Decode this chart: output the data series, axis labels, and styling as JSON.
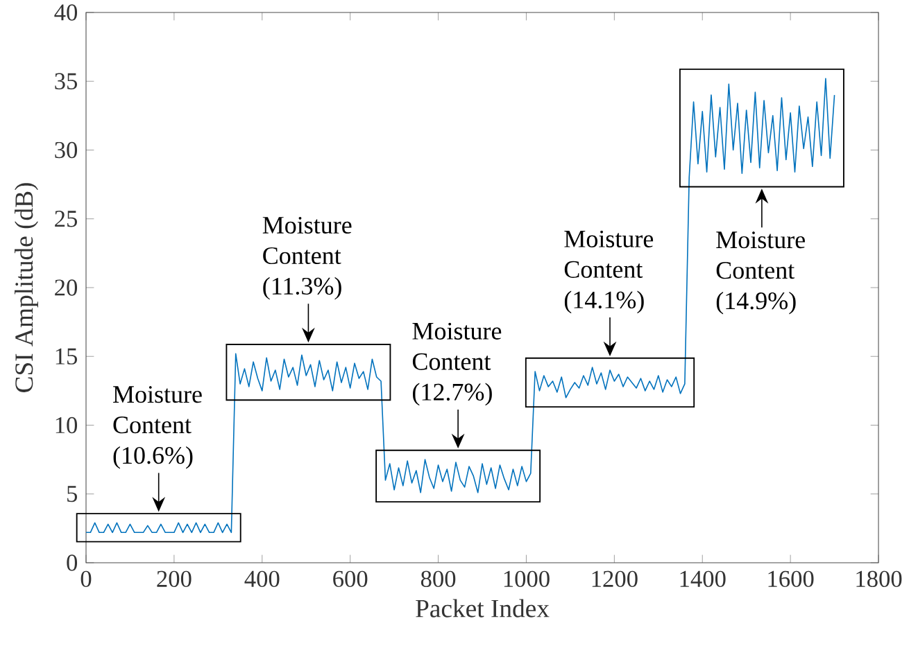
{
  "chart_data": {
    "type": "line",
    "xlabel": "Packet Index",
    "ylabel": "CSI Amplitude (dB)",
    "xlim": [
      0,
      1800
    ],
    "ylim": [
      0,
      40
    ],
    "xticks": [
      0,
      200,
      400,
      600,
      800,
      1000,
      1200,
      1400,
      1600,
      1800
    ],
    "yticks": [
      0,
      5,
      10,
      15,
      20,
      25,
      30,
      35,
      40
    ],
    "x": [
      0,
      10,
      20,
      30,
      40,
      50,
      60,
      70,
      80,
      90,
      100,
      110,
      120,
      130,
      140,
      150,
      160,
      170,
      180,
      190,
      200,
      210,
      220,
      230,
      240,
      250,
      260,
      270,
      280,
      290,
      300,
      310,
      320,
      330,
      340,
      350,
      360,
      370,
      380,
      390,
      400,
      410,
      420,
      430,
      440,
      450,
      460,
      470,
      480,
      490,
      500,
      510,
      520,
      530,
      540,
      550,
      560,
      570,
      580,
      590,
      600,
      610,
      620,
      630,
      640,
      650,
      660,
      670,
      680,
      690,
      700,
      710,
      720,
      730,
      740,
      750,
      760,
      770,
      780,
      790,
      800,
      810,
      820,
      830,
      840,
      850,
      860,
      870,
      880,
      890,
      900,
      910,
      920,
      930,
      940,
      950,
      960,
      970,
      980,
      990,
      1000,
      1010,
      1020,
      1030,
      1040,
      1050,
      1060,
      1070,
      1080,
      1090,
      1100,
      1110,
      1120,
      1130,
      1140,
      1150,
      1160,
      1170,
      1180,
      1190,
      1200,
      1210,
      1220,
      1230,
      1240,
      1250,
      1260,
      1270,
      1280,
      1290,
      1300,
      1310,
      1320,
      1330,
      1340,
      1350,
      1360,
      1370,
      1380,
      1390,
      1400,
      1410,
      1420,
      1430,
      1440,
      1450,
      1460,
      1470,
      1480,
      1490,
      1500,
      1510,
      1520,
      1530,
      1540,
      1550,
      1560,
      1570,
      1580,
      1590,
      1600,
      1610,
      1620,
      1630,
      1640,
      1650,
      1660,
      1670,
      1680,
      1690,
      1700
    ],
    "series": [
      {
        "color": "#0072bd",
        "values": [
          2.2,
          2.2,
          2.9,
          2.2,
          2.2,
          2.8,
          2.2,
          2.9,
          2.2,
          2.2,
          2.8,
          2.2,
          2.2,
          2.2,
          2.7,
          2.2,
          2.2,
          2.8,
          2.2,
          2.2,
          2.2,
          2.9,
          2.2,
          2.8,
          2.2,
          2.9,
          2.2,
          2.8,
          2.2,
          2.2,
          2.9,
          2.2,
          2.8,
          2.2,
          15.2,
          13.0,
          14.1,
          12.8,
          14.6,
          13.4,
          12.5,
          14.9,
          13.2,
          14.0,
          12.6,
          14.8,
          13.5,
          14.2,
          12.9,
          15.1,
          13.6,
          14.4,
          12.8,
          14.7,
          13.3,
          14.0,
          12.5,
          14.6,
          13.1,
          14.2,
          12.7,
          14.5,
          13.4,
          13.9,
          12.6,
          14.8,
          13.5,
          13.2,
          6.0,
          7.2,
          5.3,
          6.9,
          5.6,
          7.4,
          5.8,
          6.7,
          5.1,
          7.5,
          6.2,
          5.4,
          7.1,
          5.9,
          6.8,
          5.2,
          7.3,
          6.0,
          5.5,
          7.0,
          6.3,
          5.1,
          7.2,
          5.7,
          6.9,
          5.4,
          7.1,
          6.1,
          5.3,
          6.8,
          5.6,
          7.0,
          5.9,
          6.5,
          13.9,
          12.5,
          13.6,
          12.8,
          13.2,
          12.4,
          13.5,
          12.0,
          12.6,
          13.1,
          12.7,
          13.6,
          12.9,
          14.2,
          13.0,
          13.8,
          12.6,
          14.0,
          13.2,
          13.7,
          12.8,
          13.5,
          13.1,
          12.7,
          13.4,
          12.5,
          13.2,
          12.6,
          13.6,
          12.4,
          13.3,
          12.8,
          13.5,
          12.3,
          13.0,
          28.0,
          33.5,
          29.0,
          32.8,
          28.4,
          34.0,
          29.5,
          33.1,
          28.6,
          34.8,
          30.0,
          33.4,
          28.3,
          32.9,
          29.1,
          34.2,
          28.7,
          33.6,
          29.8,
          32.5,
          28.5,
          33.8,
          29.3,
          32.7,
          28.4,
          33.2,
          30.1,
          32.4,
          28.8,
          33.5,
          29.6,
          35.2,
          29.4,
          34.0
        ]
      }
    ],
    "annotations": [
      "Moisture Content (10.6%)",
      "Moisture Content (11.3%)",
      "Moisture Content (12.7%)",
      "Moisture Content (14.1%)",
      "Moisture Content (14.9%)"
    ]
  }
}
